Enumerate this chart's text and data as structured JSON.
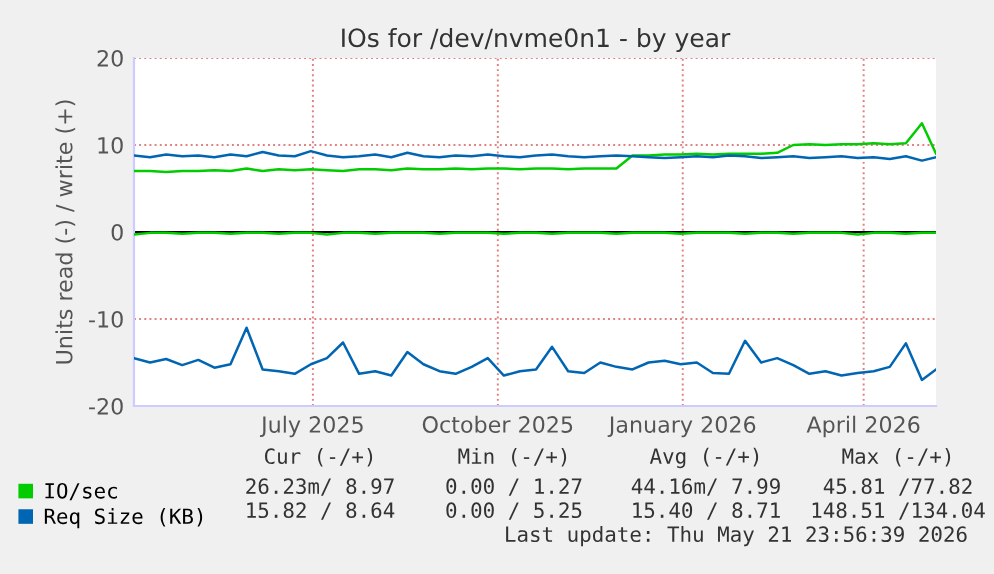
{
  "chart_data": {
    "type": "line",
    "title": "IOs for /dev/nvme0n1 - by year",
    "ylabel": "Units read (-) / write (+)",
    "x": [
      "2025-04-17",
      "2025-04-25",
      "2025-05-03",
      "2025-05-11",
      "2025-05-19",
      "2025-05-27",
      "2025-06-04",
      "2025-06-12",
      "2025-06-20",
      "2025-06-28",
      "2025-07-06",
      "2025-07-14",
      "2025-07-22",
      "2025-07-30",
      "2025-08-07",
      "2025-08-15",
      "2025-08-23",
      "2025-08-31",
      "2025-09-08",
      "2025-09-16",
      "2025-09-24",
      "2025-10-02",
      "2025-10-10",
      "2025-10-18",
      "2025-10-26",
      "2025-11-03",
      "2025-11-11",
      "2025-11-19",
      "2025-11-27",
      "2025-12-05",
      "2025-12-13",
      "2025-12-21",
      "2025-12-29",
      "2026-01-06",
      "2026-01-14",
      "2026-01-22",
      "2026-01-30",
      "2026-02-07",
      "2026-02-15",
      "2026-02-23",
      "2026-03-03",
      "2026-03-11",
      "2026-03-19",
      "2026-03-27",
      "2026-04-04",
      "2026-04-12",
      "2026-04-20",
      "2026-04-28",
      "2026-05-06",
      "2026-05-14",
      "2026-05-21"
    ],
    "series": [
      {
        "name": "IO/sec",
        "color": "#00cc00",
        "values": [
          7.0,
          7.0,
          6.9,
          7.0,
          7.0,
          7.1,
          7.0,
          7.3,
          7.0,
          7.2,
          7.1,
          7.2,
          7.1,
          7.0,
          7.2,
          7.2,
          7.1,
          7.3,
          7.2,
          7.2,
          7.3,
          7.2,
          7.3,
          7.3,
          7.2,
          7.3,
          7.3,
          7.2,
          7.3,
          7.3,
          7.3,
          8.8,
          8.8,
          8.9,
          8.9,
          9.0,
          8.9,
          9.0,
          9.0,
          9.0,
          9.1,
          10.0,
          10.1,
          10.0,
          10.1,
          10.1,
          10.2,
          10.1,
          10.2,
          12.5,
          9.0
        ]
      },
      {
        "color": "#00cc00",
        "values": [
          -0.3,
          -0.1,
          -0.1,
          -0.2,
          -0.1,
          -0.1,
          -0.2,
          -0.1,
          -0.1,
          -0.2,
          -0.1,
          -0.1,
          -0.3,
          -0.1,
          -0.1,
          -0.2,
          -0.1,
          -0.1,
          -0.1,
          -0.2,
          -0.1,
          -0.1,
          -0.1,
          -0.2,
          -0.1,
          -0.1,
          -0.2,
          -0.1,
          -0.1,
          -0.1,
          -0.2,
          -0.1,
          -0.1,
          -0.1,
          -0.2,
          -0.1,
          -0.1,
          -0.1,
          -0.2,
          -0.1,
          -0.1,
          -0.2,
          -0.1,
          -0.1,
          -0.1,
          -0.3,
          -0.1,
          -0.1,
          -0.2,
          -0.1,
          -0.1
        ]
      },
      {
        "name": "Req Size (KB)",
        "color": "#0066b3",
        "values": [
          8.8,
          8.6,
          8.9,
          8.7,
          8.8,
          8.6,
          8.9,
          8.7,
          9.2,
          8.8,
          8.7,
          9.3,
          8.8,
          8.6,
          8.7,
          8.9,
          8.6,
          9.1,
          8.7,
          8.6,
          8.8,
          8.7,
          8.9,
          8.7,
          8.6,
          8.8,
          8.9,
          8.7,
          8.6,
          8.7,
          8.8,
          8.7,
          8.6,
          8.5,
          8.6,
          8.7,
          8.6,
          8.8,
          8.7,
          8.5,
          8.6,
          8.7,
          8.5,
          8.6,
          8.7,
          8.5,
          8.6,
          8.4,
          8.7,
          8.2,
          8.6
        ]
      },
      {
        "color": "#0066b3",
        "values": [
          -14.5,
          -15.0,
          -14.6,
          -15.3,
          -14.7,
          -15.6,
          -15.2,
          -11.0,
          -15.8,
          -16.0,
          -16.3,
          -15.2,
          -14.5,
          -12.7,
          -16.3,
          -16.0,
          -16.5,
          -13.8,
          -15.2,
          -16.0,
          -16.3,
          -15.5,
          -14.5,
          -16.5,
          -16.0,
          -15.8,
          -13.2,
          -16.0,
          -16.2,
          -15.0,
          -15.5,
          -15.8,
          -15.0,
          -14.8,
          -15.2,
          -15.0,
          -16.2,
          -16.3,
          -12.5,
          -15.0,
          -14.5,
          -15.3,
          -16.3,
          -16.0,
          -16.5,
          -16.2,
          -16.0,
          -15.5,
          -12.8,
          -17.0,
          -15.8
        ]
      }
    ],
    "xlim": [
      "2025-04-17",
      "2026-05-21"
    ],
    "xticks": [
      {
        "value": "2025-07-15",
        "label": "July 2025"
      },
      {
        "value": "2025-10-15",
        "label": "October 2025"
      },
      {
        "value": "2026-01-15",
        "label": "January 2026"
      },
      {
        "value": "2026-04-15",
        "label": "April 2026"
      }
    ],
    "ylim": [
      -20,
      20
    ],
    "yticks": [
      -20,
      -10,
      0,
      10,
      20
    ],
    "grid": true,
    "legend": "bottom left",
    "ref_lines": [
      {
        "axis": "y",
        "value": 0,
        "color": "#000000"
      }
    ],
    "annotations": [
      "Cur (-/+)",
      "Min (-/+)",
      "Avg (-/+)",
      "Max (-/+)",
      "26.23m/ 8.97",
      "0.00 / 1.27",
      "44.16m/ 7.99",
      "45.81 /77.82",
      "15.82 / 8.64",
      "0.00 / 5.25",
      "15.40 / 8.71",
      "148.51 /134.04",
      "Last update: Thu May 21 23:56:39 2026"
    ]
  }
}
